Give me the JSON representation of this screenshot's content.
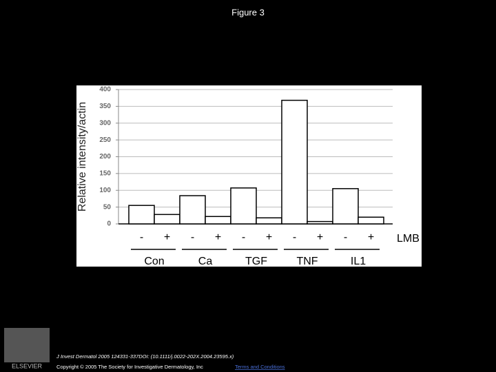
{
  "header": {
    "title": "Figure 3"
  },
  "chart_data": {
    "type": "bar",
    "y_label": "Relative intensity/actin",
    "series_label": "LMB",
    "categories": [
      "Con",
      "Ca",
      "TGF",
      "TNF",
      "IL1"
    ],
    "series": [
      {
        "name": "-",
        "color": "#ffffff",
        "values": [
          55,
          84,
          107,
          368,
          105
        ]
      },
      {
        "name": "+",
        "color": "#ffffff",
        "values": [
          28,
          22,
          18,
          7,
          20
        ]
      }
    ],
    "ylim": [
      0,
      400
    ],
    "yticks": [
      0,
      50,
      100,
      150,
      200,
      250,
      300,
      350,
      400
    ],
    "grid": true
  },
  "footer": {
    "citation": "J Invest Dermatol 2005 124331-337DOI: (10.1111/j.0022-202X.2004.23595.x)",
    "copyright": "Copyright © 2005 The Society for Investigative Dermatology, Inc",
    "link": "Terms and Conditions",
    "logo": "ELSEVIER"
  }
}
